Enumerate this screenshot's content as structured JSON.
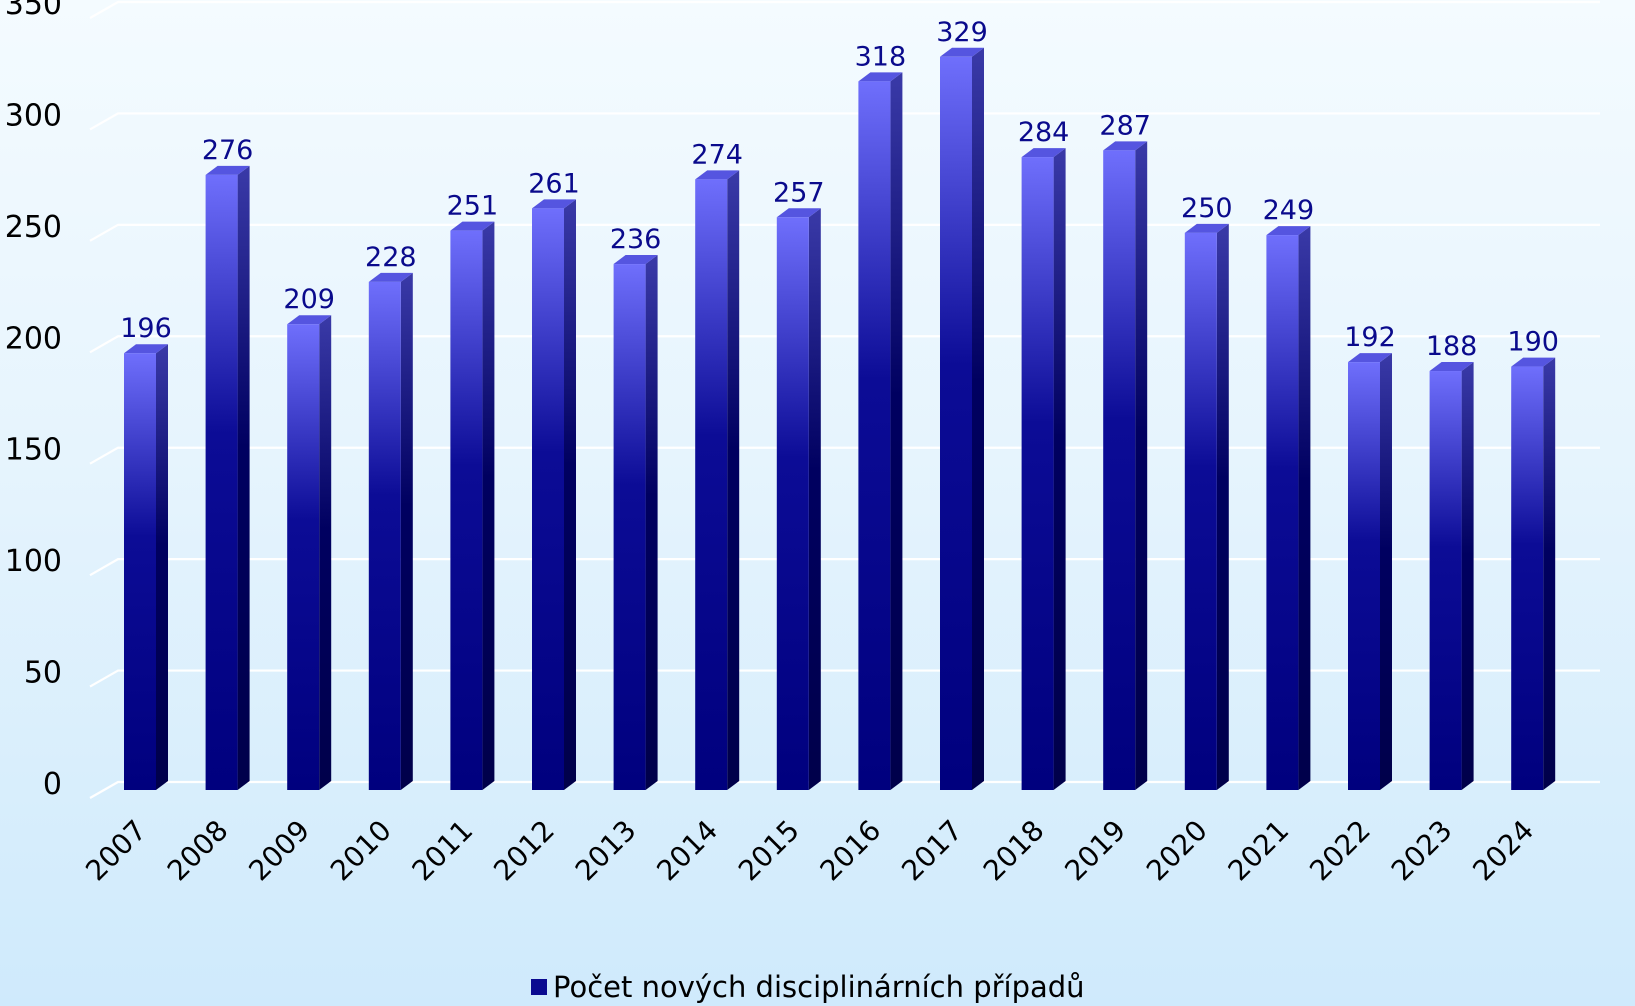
{
  "colors": {
    "bar_top": "#6f6ffc",
    "bar_mid": "#0a0a90",
    "bar_bottom": "#00007e",
    "bar_side": "#000050",
    "bar_cap": "#5555e0",
    "data_label": "#0a0a8c",
    "gridline": "#ffffff",
    "background_top": "#f4fbff",
    "background_bottom": "#cfeafc"
  },
  "chart_data": {
    "type": "bar",
    "style": "3d-column",
    "categories": [
      "2007",
      "2008",
      "2009",
      "2010",
      "2011",
      "2012",
      "2013",
      "2014",
      "2015",
      "2016",
      "2017",
      "2018",
      "2019",
      "2020",
      "2021",
      "2022",
      "2023",
      "2024"
    ],
    "series": [
      {
        "name": "Počet nových disciplinárních případů",
        "values": [
          196,
          276,
          209,
          228,
          251,
          261,
          236,
          274,
          257,
          318,
          329,
          284,
          287,
          250,
          249,
          192,
          188,
          190
        ]
      }
    ],
    "ylim": [
      0,
      350
    ],
    "yticks": [
      0,
      50,
      100,
      150,
      200,
      250,
      300,
      350
    ],
    "grid": true,
    "data_labels": true,
    "legend": "bottom",
    "title": "",
    "xlabel": "",
    "ylabel": ""
  }
}
